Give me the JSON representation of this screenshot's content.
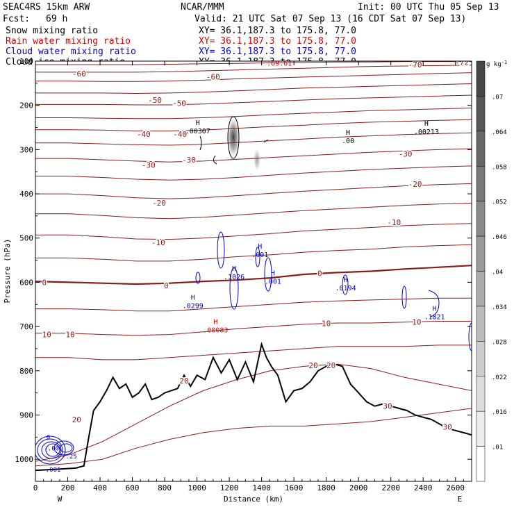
{
  "header": {
    "model": "SEAC4RS 15km ARW",
    "center": "NCAR/MMM",
    "init": "Init: 00 UTC Thu 05 Sep 13",
    "fcst_label": "Fcst:",
    "fcst_value": "69 h",
    "valid": "Valid: 21 UTC Sat 07 Sep 13 (16 CDT Sat 07 Sep 13)"
  },
  "legend": [
    {
      "name": "Snow mixing ratio",
      "xy": "XY=  36.1,187.3 to 175.8, 77.0",
      "color": "#000000"
    },
    {
      "name": "Rain water mixing ratio",
      "xy": "XY=  36.1,187.3 to 175.8, 77.0",
      "color": "#dd0000"
    },
    {
      "name": "Cloud water mixing ratio",
      "xy": "XY=  36.1,187.3 to 175.8, 77.0",
      "color": "#0000cc"
    },
    {
      "name": "Cloud ice mixing ratio",
      "xy": "XY=  36.1,187.3 to 175.8, 77.0",
      "color": "#000000"
    }
  ],
  "chart_data": {
    "type": "cross-section contour",
    "xlabel": "Distance (km)",
    "ylabel": "Pressure (hPa)",
    "xlim": [
      0,
      2700
    ],
    "ylim": [
      1050,
      100
    ],
    "x_ticks": [
      0,
      200,
      400,
      600,
      800,
      1000,
      1200,
      1400,
      1600,
      1800,
      2000,
      2200,
      2400,
      2600
    ],
    "y_ticks": [
      100,
      200,
      300,
      400,
      500,
      600,
      700,
      800,
      900,
      1000
    ],
    "y_tick_labels": [
      "100",
      "200",
      "300",
      "400",
      "500",
      "600",
      "700",
      "800",
      "900",
      "1000"
    ],
    "endpoints": {
      "left": "W",
      "right": "E"
    },
    "temperature_contours": {
      "color": "#8b1a1a",
      "interval_C": 5,
      "levels": [
        {
          "t": 25,
          "p": [
            1015,
            1010,
            1000,
            975,
            955,
            940,
            930,
            925,
            925,
            920,
            915,
            905,
            895,
            885
          ]
        },
        {
          "t": 20,
          "p": [
            1005,
            990,
            960,
            920,
            880,
            845,
            820,
            800,
            790,
            785,
            795,
            815,
            830,
            845
          ]
        },
        {
          "t": 15,
          "p": [
            770,
            770,
            775,
            775,
            770,
            765,
            760,
            755,
            750,
            745,
            745,
            745,
            742,
            742
          ]
        },
        {
          "t": 10,
          "p": [
            715,
            715,
            718,
            720,
            718,
            712,
            705,
            700,
            695,
            692,
            692,
            690,
            688,
            688
          ]
        },
        {
          "t": 5,
          "p": [
            660,
            660,
            662,
            665,
            665,
            660,
            655,
            650,
            645,
            642,
            640,
            638,
            636,
            636
          ]
        },
        {
          "t": 0,
          "p": [
            598,
            600,
            602,
            604,
            602,
            598,
            595,
            590,
            582,
            578,
            575,
            570,
            566,
            562
          ]
        },
        {
          "t": -5,
          "p": [
            545,
            545,
            548,
            552,
            552,
            548,
            542,
            538,
            532,
            528,
            525,
            520,
            517,
            515
          ]
        },
        {
          "t": -10,
          "p": [
            493,
            493,
            497,
            502,
            503,
            500,
            495,
            490,
            484,
            480,
            476,
            472,
            469,
            467
          ]
        },
        {
          "t": -15,
          "p": [
            445,
            445,
            449,
            454,
            456,
            453,
            448,
            443,
            438,
            434,
            430,
            426,
            423,
            421
          ]
        },
        {
          "t": -20,
          "p": [
            400,
            400,
            404,
            409,
            411,
            409,
            404,
            399,
            394,
            390,
            386,
            382,
            379,
            377
          ]
        },
        {
          "t": -25,
          "p": [
            360,
            360,
            363,
            367,
            369,
            367,
            363,
            358,
            353,
            349,
            345,
            342,
            339,
            337
          ]
        },
        {
          "t": -30,
          "p": [
            320,
            320,
            323,
            326,
            328,
            326,
            322,
            318,
            314,
            310,
            306,
            303,
            300,
            298
          ]
        },
        {
          "t": -35,
          "p": [
            285,
            285,
            287,
            289,
            290,
            288,
            284,
            280,
            276,
            272,
            269,
            266,
            264,
            262
          ]
        },
        {
          "t": -40,
          "p": [
            255,
            255,
            256,
            258,
            258,
            256,
            252,
            248,
            245,
            241,
            238,
            236,
            234,
            232
          ]
        },
        {
          "t": -45,
          "p": [
            228,
            228,
            229,
            230,
            230,
            228,
            225,
            221,
            218,
            215,
            212,
            210,
            208,
            206
          ]
        },
        {
          "t": -50,
          "p": [
            198,
            198,
            198,
            199,
            199,
            197,
            194,
            191,
            188,
            185,
            183,
            181,
            179,
            177
          ]
        },
        {
          "t": -55,
          "p": [
            172,
            172,
            172,
            173,
            172,
            170,
            167,
            164,
            161,
            159,
            157,
            155,
            153,
            151
          ]
        },
        {
          "t": -60,
          "p": [
            145,
            145,
            146,
            146,
            145,
            143,
            140,
            138,
            136,
            134,
            132,
            130,
            128,
            126
          ]
        },
        {
          "t": -65,
          "p": [
            125,
            125,
            125,
            125,
            124,
            122,
            120,
            118,
            116,
            114,
            112,
            111,
            110,
            109
          ]
        },
        {
          "t": -70,
          "p": [
            108,
            108,
            108,
            108,
            107,
            106,
            105,
            104,
            103,
            102,
            102,
            101,
            101,
            101
          ]
        }
      ],
      "labels": [
        {
          "text": "-60",
          "x": 270,
          "p": 128
        },
        {
          "text": "-60",
          "x": 1100,
          "p": 135
        },
        {
          "text": "-70",
          "x": 2350,
          "p": 108
        },
        {
          "text": "-72",
          "x": 2640,
          "p": 102
        },
        {
          "text": "-50",
          "x": 740,
          "p": 188
        },
        {
          "text": "-50",
          "x": 890,
          "p": 195
        },
        {
          "text": "-40",
          "x": 670,
          "p": 265
        },
        {
          "text": "-40",
          "x": 895,
          "p": 265
        },
        {
          "text": "-30",
          "x": 700,
          "p": 335
        },
        {
          "text": "-30",
          "x": 950,
          "p": 323
        },
        {
          "text": "-30",
          "x": 2290,
          "p": 310
        },
        {
          "text": "-20",
          "x": 765,
          "p": 420
        },
        {
          "text": "-20",
          "x": 2350,
          "p": 378
        },
        {
          "text": "-10",
          "x": 760,
          "p": 510
        },
        {
          "text": "-10",
          "x": 2220,
          "p": 464
        },
        {
          "text": "0",
          "x": 55,
          "p": 600
        },
        {
          "text": "0",
          "x": 810,
          "p": 607
        },
        {
          "text": "0",
          "x": 1760,
          "p": 580
        },
        {
          "text": "10",
          "x": 70,
          "p": 718
        },
        {
          "text": "10",
          "x": 215,
          "p": 718
        },
        {
          "text": "10",
          "x": 1800,
          "p": 693
        },
        {
          "text": "10",
          "x": 2360,
          "p": 690
        },
        {
          "text": "20",
          "x": 1720,
          "p": 788
        },
        {
          "text": "20",
          "x": 1830,
          "p": 788
        },
        {
          "text": "20",
          "x": 920,
          "p": 822
        },
        {
          "text": "20",
          "x": 255,
          "p": 910
        },
        {
          "text": "30",
          "x": 2180,
          "p": 880
        },
        {
          "text": "30",
          "x": 2550,
          "p": 927
        }
      ]
    },
    "terrain": {
      "color": "#000000",
      "x": [
        0,
        120,
        250,
        300,
        330,
        360,
        400,
        440,
        480,
        520,
        560,
        600,
        640,
        680,
        720,
        760,
        800,
        840,
        880,
        920,
        960,
        1000,
        1050,
        1100,
        1150,
        1200,
        1250,
        1300,
        1350,
        1400,
        1430,
        1460,
        1500,
        1550,
        1600,
        1650,
        1700,
        1750,
        1800,
        1850,
        1900,
        1950,
        2000,
        2050,
        2100,
        2150,
        2200,
        2250,
        2300,
        2350,
        2400,
        2450,
        2500,
        2550,
        2600,
        2650,
        2700
      ],
      "p": [
        1025,
        1023,
        1020,
        1015,
        950,
        890,
        870,
        845,
        815,
        840,
        830,
        860,
        850,
        830,
        865,
        860,
        850,
        845,
        840,
        810,
        835,
        810,
        820,
        770,
        805,
        775,
        820,
        780,
        825,
        740,
        770,
        790,
        810,
        870,
        845,
        840,
        825,
        800,
        790,
        785,
        790,
        830,
        850,
        870,
        880,
        875,
        880,
        885,
        890,
        900,
        905,
        910,
        920,
        930,
        935,
        940,
        945
      ]
    },
    "cloud_water": {
      "color": "#0000cc",
      "maxima": [
        {
          "label": ".0299",
          "x": 975,
          "p": 655
        },
        {
          "label": ".1026",
          "x": 1230,
          "p": 590
        },
        {
          "label": ".001",
          "x": 1390,
          "p": 540
        },
        {
          "label": ".001",
          "x": 1470,
          "p": 600
        },
        {
          "label": ".0194",
          "x": 1920,
          "p": 615
        },
        {
          "label": ".1821",
          "x": 2470,
          "p": 680
        }
      ]
    },
    "rain_water": {
      "color": "#dd0000",
      "maxima": [
        {
          "label": ".00083",
          "x": 1115,
          "p": 710
        }
      ]
    },
    "snow": {
      "color": "#000000",
      "maxima": [
        {
          "label": ".00307",
          "x": 1005,
          "p": 260
        },
        {
          "label": ".00",
          "x": 1935,
          "p": 282
        },
        {
          "label": ".00213",
          "x": 2420,
          "p": 262
        }
      ]
    },
    "cloud_ice": {
      "color": "#000000",
      "maxima": [
        {
          "label": ".69.61",
          "x": 1510,
          "p": 110
        }
      ]
    },
    "bottom_left_labels": [
      {
        "text": "0",
        "x": 80,
        "p": 955
      },
      {
        "text": "-.00",
        "x": 100,
        "p": 980
      },
      {
        "text": "-.25",
        "x": 210,
        "p": 998
      },
      {
        "text": ".001",
        "x": 110,
        "p": 1028
      }
    ],
    "colorbar": {
      "unit": "g kg",
      "unit_exp": "-1",
      "ticks": [
        ".07",
        ".064",
        ".058",
        ".052",
        ".046",
        ".04",
        ".034",
        ".028",
        ".022",
        ".016",
        ".01"
      ]
    }
  }
}
